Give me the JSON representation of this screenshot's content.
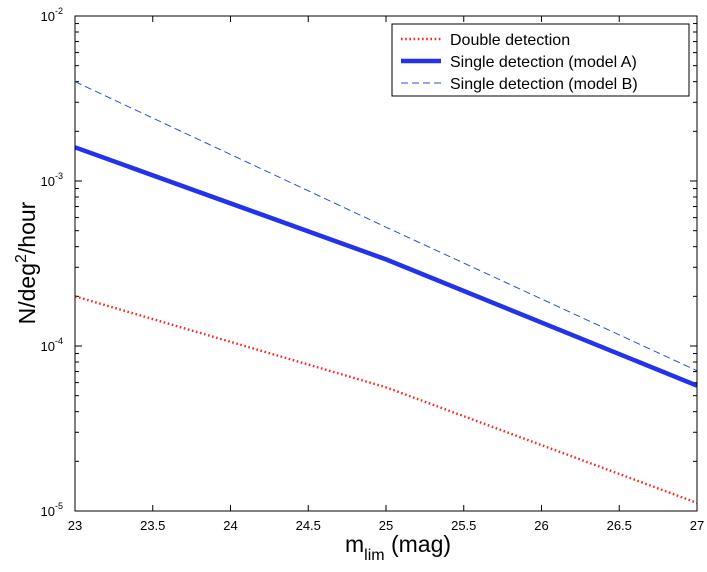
{
  "chart_data": {
    "type": "line",
    "title": "",
    "xlabel": {
      "main": "m",
      "subscript": "lim",
      "suffix": " (mag)"
    },
    "ylabel": {
      "prefix": "N/deg",
      "superscript": "2",
      "suffix": "/hour"
    },
    "xlim": [
      23,
      27
    ],
    "ylim": [
      1e-05,
      0.01
    ],
    "yscale": "log",
    "grid": false,
    "legend_position": "top-right",
    "x_ticks": [
      "23",
      "23.5",
      "24",
      "24.5",
      "25",
      "25.5",
      "26",
      "26.5",
      "27"
    ],
    "y_ticks": [
      {
        "base": "10",
        "exp": "-5"
      },
      {
        "base": "10",
        "exp": "-4"
      },
      {
        "base": "10",
        "exp": "-3"
      },
      {
        "base": "10",
        "exp": "-2"
      }
    ],
    "series": [
      {
        "name": "Double detection",
        "color": "#ff2222",
        "style": "dotted",
        "x": [
          23,
          25,
          27
        ],
        "y": [
          0.0002,
          5.62e-05,
          1.12e-05
        ]
      },
      {
        "name": "Single detection (model A)",
        "color": "#2233ee",
        "style": "solid",
        "x": [
          23,
          25,
          27
        ],
        "y": [
          0.0016,
          0.000335,
          5.75e-05
        ]
      },
      {
        "name": "Single detection (model B)",
        "color": "#2a4fd8",
        "style": "dashed",
        "x": [
          23,
          25,
          27
        ],
        "y": [
          0.004,
          0.000525,
          7.08e-05
        ]
      }
    ]
  }
}
